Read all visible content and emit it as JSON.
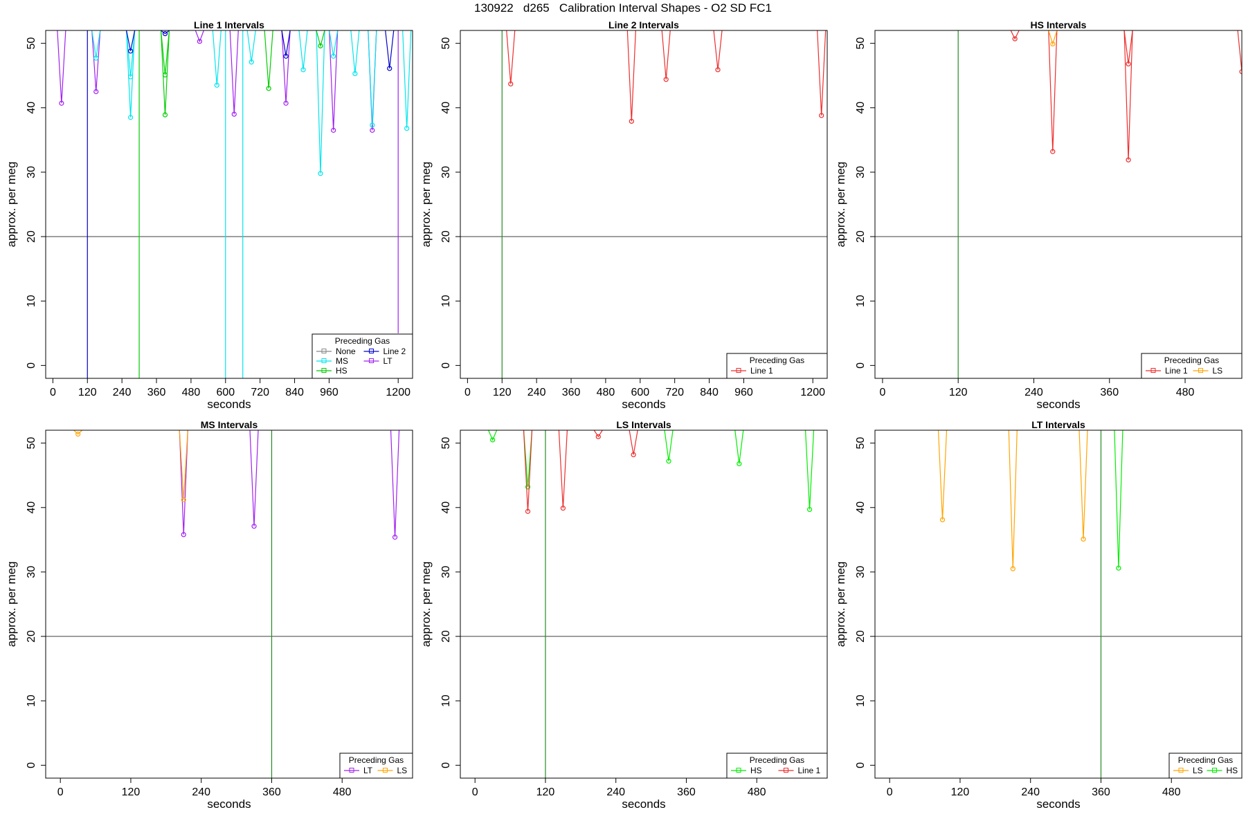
{
  "title": "130922   d265   Calibration Interval Shapes - O2 SD FC1",
  "chart_data": [
    {
      "type": "line",
      "title": "Line 1 Intervals",
      "xlabel": "seconds",
      "ylabel": "approx. per meg",
      "xlim": [
        -25,
        1250
      ],
      "ylim": [
        -2,
        52
      ],
      "xticks": [
        0,
        120,
        240,
        360,
        480,
        600,
        720,
        840,
        960,
        1200
      ],
      "yticks": [
        0,
        10,
        20,
        30,
        40,
        50
      ],
      "hline": {
        "y": 20,
        "color": "#555555"
      },
      "vlines": [
        {
          "x": 120,
          "color": "#0000cd"
        },
        {
          "x": 300,
          "color": "#00cd00"
        },
        {
          "x": 600,
          "color": "#00e5ee"
        },
        {
          "x": 660,
          "color": "#00e5ee"
        },
        {
          "x": 1200,
          "color": "#a020f0",
          "from": 5,
          "to": 52
        }
      ],
      "series": [
        {
          "color": "#a020f0",
          "points": [
            [
              30,
              40.7
            ],
            [
              150,
              42.5
            ],
            [
              510,
              50.3
            ],
            [
              630,
              39.0
            ],
            [
              810,
              40.7
            ],
            [
              975,
              36.5
            ],
            [
              1110,
              36.5
            ]
          ]
        },
        {
          "color": "#00e5ee",
          "points": [
            [
              150,
              47.7
            ],
            [
              270,
              38.5
            ],
            [
              270,
              44.8
            ],
            [
              570,
              43.5
            ],
            [
              690,
              47.1
            ],
            [
              870,
              45.9
            ],
            [
              930,
              29.8
            ],
            [
              975,
              48.0
            ],
            [
              1050,
              45.3
            ],
            [
              1110,
              37.3
            ],
            [
              1230,
              36.8
            ]
          ]
        },
        {
          "color": "#00cd00",
          "points": [
            [
              390,
              38.9
            ],
            [
              390,
              45.1
            ],
            [
              750,
              43.0
            ],
            [
              930,
              49.6
            ]
          ]
        },
        {
          "color": "#0000cd",
          "points": [
            [
              270,
              48.8
            ],
            [
              390,
              51.5
            ],
            [
              810,
              48.0
            ],
            [
              1170,
              46.1
            ]
          ]
        }
      ],
      "legend": {
        "title": "Preceding Gas",
        "position": "bottom-right",
        "entries": [
          {
            "label": "None",
            "color": "#888888"
          },
          {
            "label": "Line 2",
            "color": "#0000cd"
          },
          {
            "label": "MS",
            "color": "#00e5ee"
          },
          {
            "label": "LT",
            "color": "#a020f0"
          },
          {
            "label": "HS",
            "color": "#00cd00"
          }
        ]
      }
    },
    {
      "type": "line",
      "title": "Line 2 Intervals",
      "xlabel": "seconds",
      "ylabel": "approx. per meg",
      "xlim": [
        -25,
        1250
      ],
      "ylim": [
        -2,
        52
      ],
      "xticks": [
        0,
        120,
        240,
        360,
        480,
        600,
        720,
        840,
        960,
        1200
      ],
      "yticks": [
        0,
        10,
        20,
        30,
        40,
        50
      ],
      "hline": {
        "y": 20,
        "color": "#555555"
      },
      "vlines": [
        {
          "x": 120,
          "color": "#228b22"
        }
      ],
      "series": [
        {
          "color": "#ee2c2c",
          "points": [
            [
              150,
              43.7
            ],
            [
              570,
              37.9
            ],
            [
              690,
              44.4
            ],
            [
              870,
              45.9
            ],
            [
              1230,
              38.8
            ]
          ]
        }
      ],
      "legend": {
        "title": "Preceding Gas",
        "position": "bottom-right",
        "entries": [
          {
            "label": "Line 1",
            "color": "#ee2c2c"
          }
        ]
      }
    },
    {
      "type": "line",
      "title": "HS Intervals",
      "xlabel": "seconds",
      "ylabel": "approx. per meg",
      "xlim": [
        -12,
        570
      ],
      "ylim": [
        -2,
        52
      ],
      "xticks": [
        0,
        120,
        240,
        360,
        480
      ],
      "yticks": [
        0,
        10,
        20,
        30,
        40,
        50
      ],
      "hline": {
        "y": 20,
        "color": "#555555"
      },
      "vlines": [
        {
          "x": 120,
          "color": "#228b22"
        }
      ],
      "series": [
        {
          "color": "#ee2c2c",
          "points": [
            [
              210,
              50.7
            ],
            [
              270,
              33.2
            ],
            [
              390,
              31.9
            ],
            [
              390,
              46.8
            ],
            [
              570,
              45.6
            ]
          ]
        },
        {
          "color": "#ffa500",
          "points": [
            [
              270,
              49.9
            ]
          ]
        }
      ],
      "legend": {
        "title": "Preceding Gas",
        "position": "bottom-right",
        "entries": [
          {
            "label": "Line 1",
            "color": "#ee2c2c"
          },
          {
            "label": "LS",
            "color": "#ffa500"
          }
        ]
      }
    },
    {
      "type": "line",
      "title": "MS Intervals",
      "xlabel": "seconds",
      "ylabel": "approx. per meg",
      "xlim": [
        -25,
        600
      ],
      "ylim": [
        -2,
        52
      ],
      "xticks": [
        0,
        120,
        240,
        360,
        480
      ],
      "yticks": [
        0,
        10,
        20,
        30,
        40,
        50
      ],
      "hline": {
        "y": 20,
        "color": "#555555"
      },
      "vlines": [
        {
          "x": 360,
          "color": "#228b22"
        }
      ],
      "series": [
        {
          "color": "#a020f0",
          "points": [
            [
              210,
              35.8
            ],
            [
              330,
              37.1
            ],
            [
              570,
              35.4
            ]
          ]
        },
        {
          "color": "#ffa500",
          "points": [
            [
              30,
              51.4
            ],
            [
              210,
              41.2
            ]
          ]
        }
      ],
      "legend": {
        "title": "Preceding Gas",
        "position": "bottom-right",
        "entries": [
          {
            "label": "LT",
            "color": "#a020f0"
          },
          {
            "label": "LS",
            "color": "#ffa500"
          }
        ]
      }
    },
    {
      "type": "line",
      "title": "LS Intervals",
      "xlabel": "seconds",
      "ylabel": "approx. per meg",
      "xlim": [
        -25,
        600
      ],
      "ylim": [
        -2,
        52
      ],
      "xticks": [
        0,
        120,
        240,
        360,
        480
      ],
      "yticks": [
        0,
        10,
        20,
        30,
        40,
        50
      ],
      "hline": {
        "y": 20,
        "color": "#555555"
      },
      "vlines": [
        {
          "x": 120,
          "color": "#228b22"
        }
      ],
      "series": [
        {
          "color": "#00ee00",
          "points": [
            [
              30,
              50.5
            ],
            [
              90,
              43.2
            ],
            [
              330,
              47.2
            ],
            [
              450,
              46.8
            ],
            [
              570,
              39.7
            ]
          ]
        },
        {
          "color": "#ee2c2c",
          "points": [
            [
              90,
              39.4
            ],
            [
              150,
              39.9
            ],
            [
              210,
              51.0
            ],
            [
              270,
              48.2
            ]
          ]
        }
      ],
      "legend": {
        "title": "Preceding Gas",
        "position": "bottom-right",
        "entries": [
          {
            "label": "HS",
            "color": "#00ee00"
          },
          {
            "label": "Line 1",
            "color": "#ee2c2c"
          }
        ]
      }
    },
    {
      "type": "line",
      "title": "LT Intervals",
      "xlabel": "seconds",
      "ylabel": "approx. per meg",
      "xlim": [
        -25,
        600
      ],
      "ylim": [
        -2,
        52
      ],
      "xticks": [
        0,
        120,
        240,
        360,
        480
      ],
      "yticks": [
        0,
        10,
        20,
        30,
        40,
        50
      ],
      "hline": {
        "y": 20,
        "color": "#555555"
      },
      "vlines": [
        {
          "x": 360,
          "color": "#228b22"
        }
      ],
      "series": [
        {
          "color": "#ffa500",
          "points": [
            [
              90,
              38.1
            ],
            [
              210,
              30.5
            ],
            [
              330,
              35.1
            ]
          ]
        },
        {
          "color": "#00ee00",
          "points": [
            [
              390,
              30.6
            ]
          ]
        }
      ],
      "legend": {
        "title": "Preceding Gas",
        "position": "bottom-right",
        "entries": [
          {
            "label": "LS",
            "color": "#ffa500"
          },
          {
            "label": "HS",
            "color": "#00ee00"
          }
        ]
      }
    }
  ]
}
